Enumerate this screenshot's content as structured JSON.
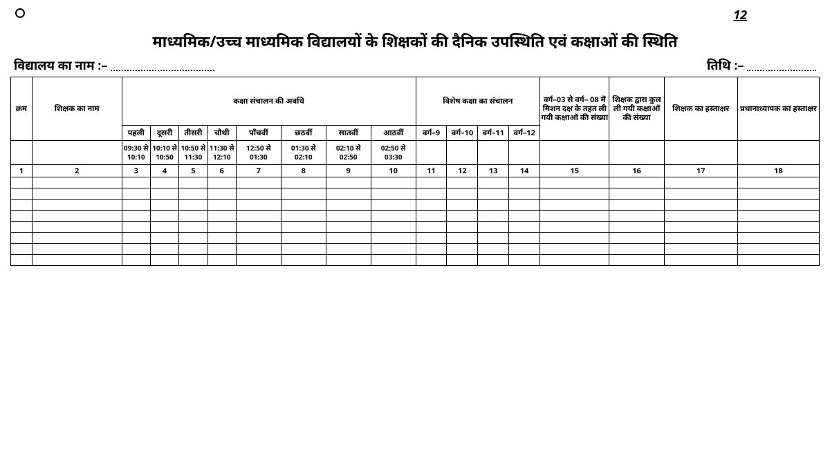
{
  "page_number_mark": "12",
  "title": "माध्यमिक/उच्च माध्यमिक विद्यालयों के शिक्षकों की दैनिक उपस्थिति एवं कक्षाओं की स्थिति",
  "school_label": "विद्यालय का नाम :–",
  "date_label": "तिथि :–",
  "headers": {
    "kram": "क्रम",
    "teacher_name": "शिक्षक का नाम",
    "class_conduct": "कक्षा संचालन की अवधि",
    "special_class": "विशेष कक्षा का संचालन",
    "mission_daksh": "वर्ग–03 से वर्ग– 08 में मिशन दक्ष के तहत ली गयी कक्षाओं की संख्या",
    "total_classes": "शिक्षक द्वारा कुल ली गयी कक्षाओं की संख्या",
    "teacher_sign": "शिक्षक का हस्ताक्षर",
    "principal_sign": "प्रधानाध्यापक का हस्ताक्षर"
  },
  "periods": {
    "p1": "पहली",
    "p2": "दूसरी",
    "p3": "तीसरी",
    "p4": "चौथी",
    "p5": "पाँचवीं",
    "p6": "छठवीं",
    "p7": "सातवीं",
    "p8": "आठवीं",
    "v9": "वर्ग–9",
    "v10": "वर्ग–10",
    "v11": "वर्ग–11",
    "v12": "वर्ग–12"
  },
  "times": {
    "t1": "09:30 से 10:10",
    "t2": "10:10 से 10:50",
    "t3": "10:50 से 11:30",
    "t4": "11:30 से 12:10",
    "t5": "12:50 से 01:30",
    "t6": "01:30 से 02:10",
    "t7": "02:10 से 02:50",
    "t8": "02:50 से 03:30"
  },
  "col_numbers": {
    "c1": "1",
    "c2": "2",
    "c3": "3",
    "c4": "4",
    "c5": "5",
    "c6": "6",
    "c7": "7",
    "c8": "8",
    "c9": "9",
    "c10": "10",
    "c11": "11",
    "c12": "12",
    "c13": "13",
    "c14": "14",
    "c15": "15",
    "c16": "16",
    "c17": "17",
    "c18": "18"
  },
  "col_widths_pct": [
    2.6,
    11,
    3.5,
    3.5,
    3.5,
    3.5,
    5.5,
    5.5,
    5.5,
    5.5,
    3.8,
    3.8,
    3.8,
    3.8,
    8.5,
    6.7,
    9,
    10
  ],
  "empty_row_count": 8
}
